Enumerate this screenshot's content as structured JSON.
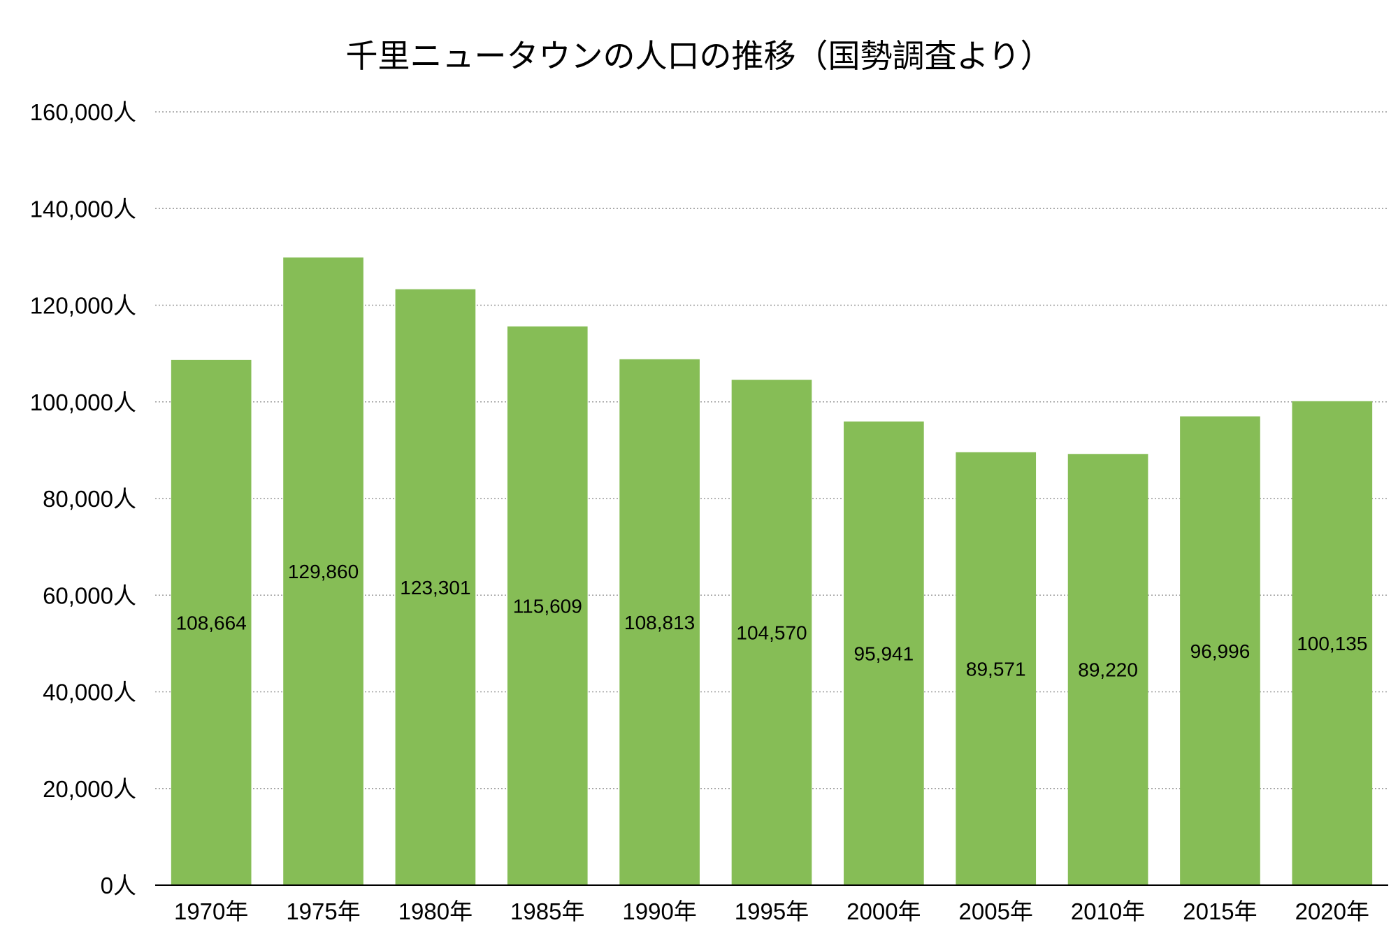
{
  "chart_data": {
    "type": "bar",
    "title": "千里ニュータウンの人口の推移（国勢調査より）",
    "xlabel": "",
    "ylabel": "",
    "categories": [
      "1970年",
      "1975年",
      "1980年",
      "1985年",
      "1990年",
      "1995年",
      "2000年",
      "2005年",
      "2010年",
      "2015年",
      "2020年"
    ],
    "values": [
      108664,
      129860,
      123301,
      115609,
      108813,
      104570,
      95941,
      89571,
      89220,
      96996,
      100135
    ],
    "data_labels": [
      "108,664",
      "129,860",
      "123,301",
      "115,609",
      "108,813",
      "104,570",
      "95,941",
      "89,571",
      "89,220",
      "96,996",
      "100,135"
    ],
    "ylim": [
      0,
      160000
    ],
    "yticks": [
      0,
      20000,
      40000,
      60000,
      80000,
      100000,
      120000,
      140000,
      160000
    ],
    "ytick_labels": [
      "0人",
      "20,000人",
      "40,000人",
      "60,000人",
      "80,000人",
      "100,000人",
      "120,000人",
      "140,000人",
      "160,000人"
    ],
    "grid": true,
    "legend": "none",
    "bar_color": "#86bd56"
  }
}
